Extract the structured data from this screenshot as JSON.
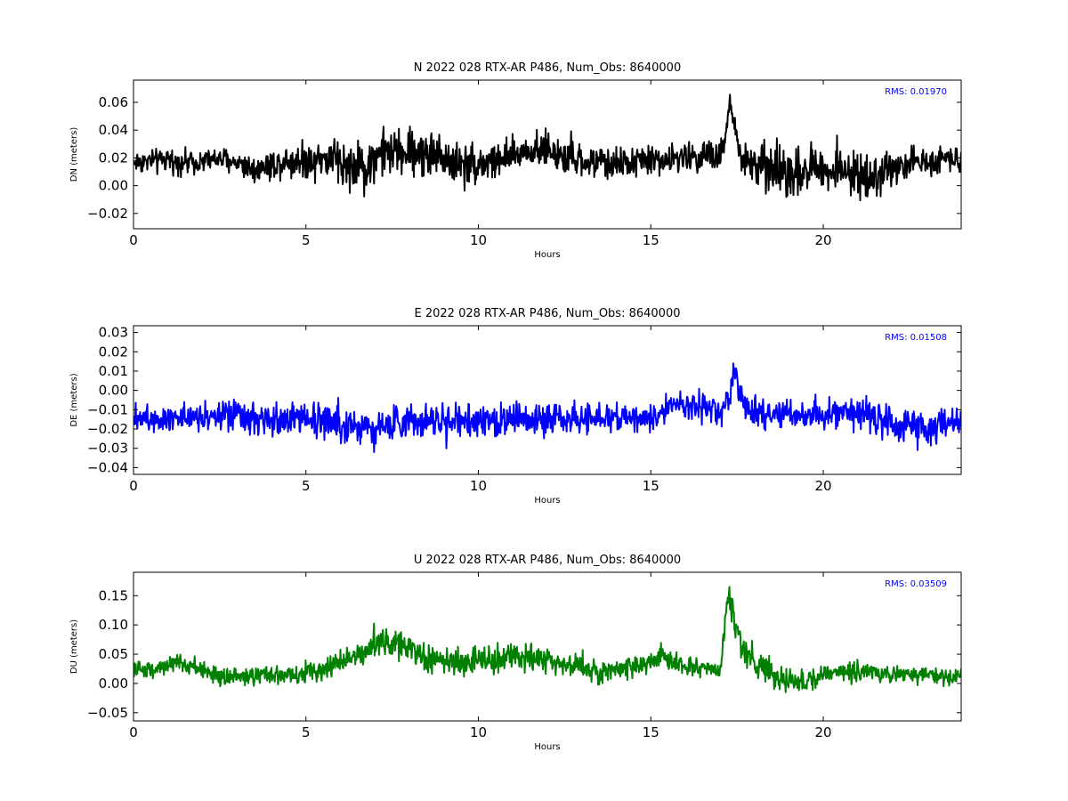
{
  "chart_data": [
    {
      "type": "line",
      "title": "N 2022 028 RTX-AR  P486, Num_Obs: 8640000",
      "xlabel": "Hours",
      "ylabel": "DN (meters)",
      "xlim": [
        0,
        24
      ],
      "ylim": [
        -0.031,
        0.076
      ],
      "xticks": [
        0,
        5,
        10,
        15,
        20
      ],
      "yticks": [
        -0.02,
        0.0,
        0.02,
        0.04,
        0.06
      ],
      "ytick_labels": [
        "−0.02",
        "0.00",
        "0.02",
        "0.04",
        "0.06"
      ],
      "rms_label": "RMS:  0.01970",
      "color": "#000000",
      "series": [
        {
          "x": [
            0,
            0.5,
            1,
            1.5,
            2,
            2.5,
            3,
            3.5,
            4,
            4.5,
            5,
            5.5,
            6,
            6.5,
            6.7,
            7,
            7.5,
            8,
            8.5,
            9,
            9.5,
            10,
            10.5,
            11,
            11.5,
            12,
            12.5,
            13,
            13.5,
            14,
            14.5,
            15,
            15.5,
            16,
            16.5,
            17,
            17.2,
            17.3,
            17.4,
            17.6,
            18,
            18.5,
            19,
            19.5,
            20,
            20.5,
            21,
            21.5,
            22,
            22.5,
            23,
            23.5,
            24
          ],
          "center": [
            0.017,
            0.018,
            0.018,
            0.017,
            0.018,
            0.019,
            0.017,
            0.012,
            0.015,
            0.018,
            0.019,
            0.02,
            0.018,
            0.014,
            0.012,
            0.022,
            0.024,
            0.024,
            0.024,
            0.02,
            0.016,
            0.016,
            0.018,
            0.02,
            0.027,
            0.026,
            0.019,
            0.017,
            0.017,
            0.016,
            0.017,
            0.019,
            0.018,
            0.021,
            0.022,
            0.02,
            0.04,
            0.06,
            0.045,
            0.02,
            0.015,
            0.012,
            0.01,
            0.012,
            0.013,
            0.011,
            0.008,
            0.006,
            0.013,
            0.016,
            0.017,
            0.02,
            0.02
          ],
          "amp": [
            0.012,
            0.012,
            0.012,
            0.012,
            0.012,
            0.013,
            0.013,
            0.015,
            0.016,
            0.017,
            0.02,
            0.022,
            0.026,
            0.026,
            0.03,
            0.026,
            0.024,
            0.025,
            0.026,
            0.024,
            0.022,
            0.022,
            0.021,
            0.02,
            0.019,
            0.019,
            0.018,
            0.017,
            0.017,
            0.016,
            0.016,
            0.016,
            0.015,
            0.016,
            0.016,
            0.02,
            0.012,
            0.012,
            0.014,
            0.02,
            0.024,
            0.026,
            0.028,
            0.026,
            0.022,
            0.022,
            0.022,
            0.022,
            0.018,
            0.016,
            0.015,
            0.014,
            0.014
          ]
        }
      ]
    },
    {
      "type": "line",
      "title": "E 2022 028 RTX-AR  P486, Num_Obs: 8640000",
      "xlabel": "Hours",
      "ylabel": "DE (meters)",
      "xlim": [
        0,
        24
      ],
      "ylim": [
        -0.0435,
        0.0335
      ],
      "xticks": [
        0,
        5,
        10,
        15,
        20
      ],
      "yticks": [
        -0.04,
        -0.03,
        -0.02,
        -0.01,
        0.0,
        0.01,
        0.02,
        0.03
      ],
      "ytick_labels": [
        "−0.04",
        "−0.03",
        "−0.02",
        "−0.01",
        "0.00",
        "0.01",
        "0.02",
        "0.03"
      ],
      "rms_label": "RMS:  0.01508",
      "color": "#0000ff",
      "series": [
        {
          "x": [
            0,
            0.5,
            1,
            1.5,
            2,
            2.5,
            3,
            3.5,
            4,
            4.5,
            5,
            5.5,
            6,
            6.5,
            7,
            7.5,
            8,
            8.5,
            9,
            9.5,
            10,
            10.5,
            11,
            11.5,
            12,
            12.5,
            13,
            13.5,
            14,
            14.5,
            15,
            15.5,
            16,
            16.5,
            17,
            17.3,
            17.4,
            17.5,
            17.7,
            18,
            18.5,
            19,
            19.5,
            20,
            20.5,
            21,
            21.3,
            21.6,
            22,
            22.5,
            23,
            23.5,
            24
          ],
          "center": [
            -0.013,
            -0.014,
            -0.014,
            -0.013,
            -0.013,
            -0.013,
            -0.014,
            -0.016,
            -0.016,
            -0.015,
            -0.014,
            -0.015,
            -0.017,
            -0.018,
            -0.019,
            -0.018,
            -0.016,
            -0.015,
            -0.016,
            -0.017,
            -0.017,
            -0.016,
            -0.015,
            -0.015,
            -0.014,
            -0.014,
            -0.015,
            -0.015,
            -0.014,
            -0.014,
            -0.015,
            -0.01,
            -0.006,
            -0.01,
            -0.011,
            -0.002,
            0.012,
            0.002,
            -0.008,
            -0.012,
            -0.012,
            -0.012,
            -0.013,
            -0.012,
            -0.013,
            -0.013,
            -0.01,
            -0.015,
            -0.017,
            -0.019,
            -0.019,
            -0.018,
            -0.017
          ],
          "amp": [
            0.011,
            0.011,
            0.011,
            0.011,
            0.011,
            0.011,
            0.012,
            0.013,
            0.013,
            0.013,
            0.013,
            0.014,
            0.014,
            0.014,
            0.014,
            0.013,
            0.013,
            0.013,
            0.013,
            0.013,
            0.013,
            0.013,
            0.013,
            0.013,
            0.012,
            0.012,
            0.012,
            0.012,
            0.011,
            0.011,
            0.011,
            0.011,
            0.011,
            0.011,
            0.011,
            0.01,
            0.014,
            0.012,
            0.011,
            0.011,
            0.011,
            0.011,
            0.011,
            0.011,
            0.012,
            0.013,
            0.016,
            0.014,
            0.013,
            0.013,
            0.012,
            0.012,
            0.012
          ]
        }
      ]
    },
    {
      "type": "line",
      "title": "U 2022 028 RTX-AR  P486, Num_Obs: 8640000",
      "xlabel": "Hours",
      "ylabel": "DU (meters)",
      "xlim": [
        0,
        24
      ],
      "ylim": [
        -0.064,
        0.19
      ],
      "xticks": [
        0,
        5,
        10,
        15,
        20
      ],
      "yticks": [
        -0.05,
        0.0,
        0.05,
        0.1,
        0.15
      ],
      "ytick_labels": [
        "−0.05",
        "0.00",
        "0.05",
        "0.10",
        "0.15"
      ],
      "rms_label": "RMS:  0.03509",
      "color": "#008000",
      "series": [
        {
          "x": [
            0,
            0.5,
            1,
            1.5,
            2,
            2.5,
            3,
            3.5,
            4,
            4.5,
            5,
            5.5,
            6,
            6.5,
            7,
            7.5,
            8,
            8.5,
            9,
            9.5,
            10,
            10.5,
            11,
            11.5,
            12,
            12.5,
            13,
            13.5,
            14,
            14.5,
            15,
            15.3,
            15.6,
            16,
            16.5,
            17,
            17.25,
            17.4,
            17.6,
            18,
            18.5,
            19,
            19.5,
            20,
            20.5,
            21,
            21.5,
            22,
            22.5,
            23,
            23.5,
            24
          ],
          "center": [
            0.022,
            0.025,
            0.032,
            0.032,
            0.024,
            0.012,
            0.01,
            0.012,
            0.014,
            0.014,
            0.018,
            0.024,
            0.036,
            0.05,
            0.068,
            0.07,
            0.064,
            0.042,
            0.036,
            0.036,
            0.04,
            0.04,
            0.05,
            0.046,
            0.04,
            0.034,
            0.03,
            0.018,
            0.022,
            0.03,
            0.036,
            0.05,
            0.04,
            0.028,
            0.025,
            0.022,
            0.15,
            0.11,
            0.07,
            0.035,
            0.015,
            0.005,
            0.005,
            0.016,
            0.02,
            0.022,
            0.02,
            0.015,
            0.015,
            0.016,
            0.01,
            0.008
          ],
          "amp": [
            0.022,
            0.022,
            0.024,
            0.026,
            0.024,
            0.022,
            0.022,
            0.022,
            0.024,
            0.026,
            0.026,
            0.028,
            0.032,
            0.036,
            0.04,
            0.042,
            0.042,
            0.036,
            0.034,
            0.034,
            0.034,
            0.034,
            0.034,
            0.032,
            0.032,
            0.03,
            0.03,
            0.03,
            0.028,
            0.028,
            0.028,
            0.032,
            0.03,
            0.026,
            0.024,
            0.024,
            0.035,
            0.04,
            0.04,
            0.036,
            0.034,
            0.034,
            0.032,
            0.028,
            0.026,
            0.028,
            0.024,
            0.022,
            0.022,
            0.022,
            0.022,
            0.022
          ]
        }
      ]
    }
  ]
}
